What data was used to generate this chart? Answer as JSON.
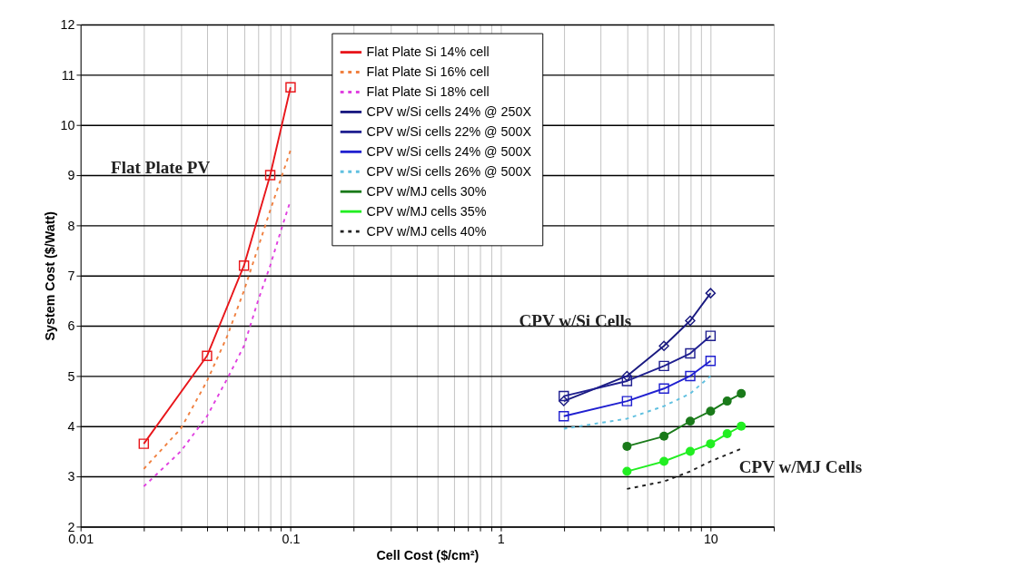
{
  "chart_data": {
    "type": "line",
    "xlabel": "Cell Cost ($/cm²)",
    "ylabel": "System Cost ($/Watt)",
    "log": "x",
    "xlim": [
      0.01,
      20
    ],
    "ylim": [
      2,
      12
    ],
    "xticks": [
      0.01,
      {
        "value": 0.02,
        "label": null
      },
      {
        "value": 0.03,
        "label": null
      },
      {
        "value": 0.04,
        "label": null
      },
      {
        "value": 0.05,
        "label": null
      },
      {
        "value": 0.06,
        "label": null
      },
      {
        "value": 0.07,
        "label": null
      },
      {
        "value": 0.08,
        "label": null
      },
      {
        "value": 0.09,
        "label": null
      },
      0.1,
      {
        "value": 0.2,
        "label": null
      },
      {
        "value": 0.3,
        "label": null
      },
      {
        "value": 0.4,
        "label": null
      },
      {
        "value": 0.5,
        "label": null
      },
      {
        "value": 0.6,
        "label": null
      },
      {
        "value": 0.7,
        "label": null
      },
      {
        "value": 0.8,
        "label": null
      },
      {
        "value": 0.9,
        "label": null
      },
      1,
      {
        "value": 2,
        "label": null
      },
      {
        "value": 3,
        "label": null
      },
      {
        "value": 4,
        "label": null
      },
      {
        "value": 5,
        "label": null
      },
      {
        "value": 6,
        "label": null
      },
      {
        "value": 7,
        "label": null
      },
      {
        "value": 8,
        "label": null
      },
      {
        "value": 9,
        "label": null
      },
      10,
      {
        "value": 20,
        "label": null
      }
    ],
    "yticks": [
      2,
      3,
      4,
      5,
      6,
      7,
      8,
      9,
      10,
      11,
      12
    ],
    "grid": true,
    "legend": "top",
    "series": [
      {
        "name": "Flat Plate Si 14% cell",
        "color": "#e8161b",
        "marker": "square",
        "line_style": "solid",
        "x": [
          0.02,
          0.04,
          0.06,
          0.08,
          0.1
        ],
        "values": [
          3.65,
          5.4,
          7.2,
          9.0,
          10.75
        ]
      },
      {
        "name": "Flat Plate Si 16% cell",
        "color": "#f08040",
        "marker": "none",
        "line_style": "dashed",
        "x": [
          0.02,
          0.03,
          0.04,
          0.05,
          0.06,
          0.08,
          0.1
        ],
        "values": [
          3.15,
          3.95,
          4.9,
          5.8,
          6.7,
          8.3,
          9.5
        ]
      },
      {
        "name": "Flat Plate Si 18% cell",
        "color": "#e040e0",
        "marker": "none",
        "line_style": "dashed",
        "x": [
          0.02,
          0.03,
          0.04,
          0.05,
          0.06,
          0.07,
          0.08,
          0.09,
          0.1
        ],
        "values": [
          2.8,
          3.5,
          4.2,
          4.95,
          5.6,
          6.5,
          7.2,
          7.9,
          8.5
        ]
      },
      {
        "name": "CPV w/Si cells 24%  @ 250X",
        "color": "#1a1a80",
        "marker": "diamond",
        "line_style": "solid",
        "x": [
          2,
          4,
          6,
          8,
          10
        ],
        "values": [
          4.5,
          5.0,
          5.6,
          6.1,
          6.65
        ]
      },
      {
        "name": "CPV w/Si cells 22%  @ 500X",
        "color": "#202090",
        "marker": "square",
        "line_style": "solid",
        "x": [
          2,
          4,
          6,
          8,
          10
        ],
        "values": [
          4.6,
          4.9,
          5.2,
          5.45,
          5.8
        ]
      },
      {
        "name": "CPV w/Si cells 24%  @ 500X",
        "color": "#2020d0",
        "marker": "square",
        "line_style": "solid",
        "x": [
          2,
          4,
          6,
          8,
          10
        ],
        "values": [
          4.2,
          4.5,
          4.75,
          5.0,
          5.3
        ]
      },
      {
        "name": "CPV w/Si cells 26%  @ 500X",
        "color": "#60c0e0",
        "marker": "none",
        "line_style": "dashed",
        "x": [
          2,
          4,
          6,
          8,
          10
        ],
        "values": [
          3.95,
          4.15,
          4.4,
          4.65,
          5.0
        ]
      },
      {
        "name": "CPV w/MJ cells 30%",
        "color": "#1a7a1a",
        "marker": "circle",
        "line_style": "solid",
        "x": [
          4,
          6,
          8,
          10,
          12,
          14
        ],
        "values": [
          3.6,
          3.8,
          4.1,
          4.3,
          4.5,
          4.65
        ]
      },
      {
        "name": "CPV w/MJ cells 35%",
        "color": "#22ee22",
        "marker": "circle",
        "line_style": "solid",
        "x": [
          4,
          6,
          8,
          10,
          12,
          14
        ],
        "values": [
          3.1,
          3.3,
          3.5,
          3.65,
          3.85,
          4.0
        ]
      },
      {
        "name": "CPV w/MJ cells 40%",
        "color": "#202020",
        "marker": "none",
        "line_style": "dashed",
        "x": [
          4,
          6,
          8,
          10,
          14
        ],
        "values": [
          2.75,
          2.9,
          3.1,
          3.3,
          3.55
        ]
      }
    ],
    "annotations": [
      "Flat Plate PV",
      "CPV w/Si Cells",
      "CPV w/MJ Cells"
    ]
  }
}
